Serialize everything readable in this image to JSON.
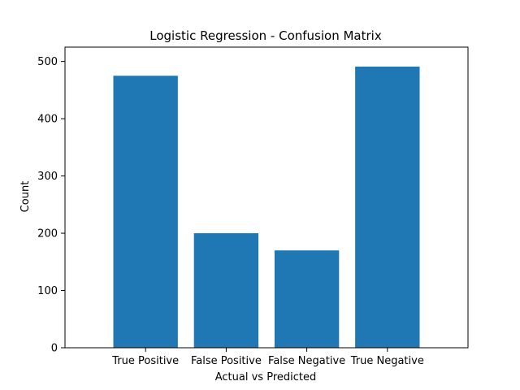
{
  "chart_data": {
    "type": "bar",
    "title": "Logistic Regression - Confusion Matrix",
    "xlabel": "Actual vs Predicted",
    "ylabel": "Count",
    "categories": [
      "True Positive",
      "False Positive",
      "False Negative",
      "True Negative"
    ],
    "values": [
      475,
      200,
      170,
      491
    ],
    "ylim": [
      0,
      525
    ],
    "yticks": [
      0,
      100,
      200,
      300,
      400,
      500
    ],
    "bar_color": "#1f77b4",
    "grid": false,
    "legend": "none"
  }
}
